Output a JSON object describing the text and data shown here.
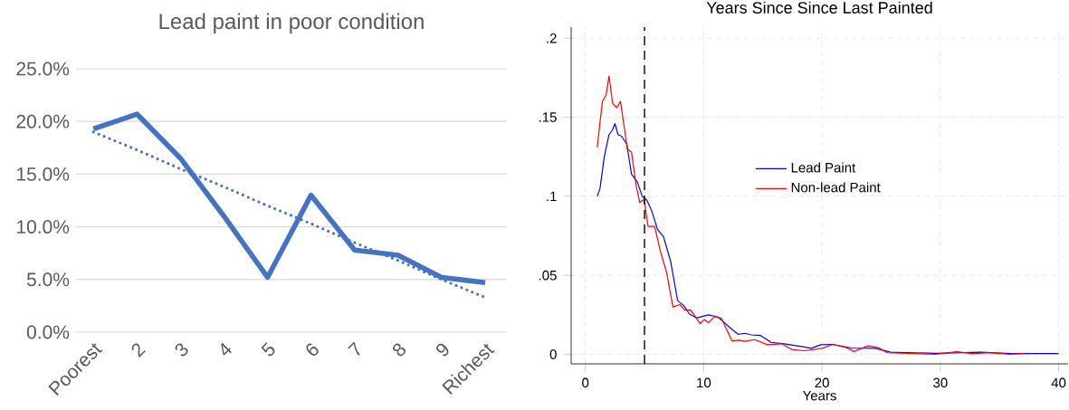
{
  "chart_data": [
    {
      "type": "line",
      "title": "Lead paint in poor condition",
      "categories": [
        "Poorest",
        "2",
        "3",
        "4",
        "5",
        "6",
        "7",
        "8",
        "9",
        "Richest"
      ],
      "series": [
        {
          "color": "#4472c4",
          "line_style": "solid",
          "values": [
            19.3,
            20.7,
            16.5,
            11.0,
            5.2,
            13.0,
            7.8,
            7.3,
            5.2,
            4.7
          ]
        },
        {
          "type": "line",
          "color": "#4472c4",
          "line_style": "dotted",
          "values": [
            19.0,
            17.3,
            15.5,
            13.8,
            12.0,
            10.3,
            8.5,
            6.8,
            5.0,
            3.3
          ]
        }
      ],
      "ylim": [
        0,
        25
      ],
      "yticks": [
        {
          "value": 0,
          "label": "0.0%"
        },
        {
          "value": 5,
          "label": "5.0%"
        },
        {
          "value": 10,
          "label": "10.0%"
        },
        {
          "value": 15,
          "label": "15.0%"
        },
        {
          "value": 20,
          "label": "20.0%"
        },
        {
          "value": 25,
          "label": "25.0%"
        }
      ],
      "grid": "y"
    },
    {
      "type": "line",
      "title": "Years Since Since Last Painted",
      "xlabel": "Years",
      "series": [
        {
          "name": "Lead Paint",
          "color": "#0000ff",
          "x": [
            1.0,
            1.24,
            1.6,
            2.0,
            2.3,
            2.5,
            2.76,
            3.06,
            3.5,
            3.9,
            4.4,
            4.8,
            5.2,
            5.6,
            6.1,
            6.6,
            7.2,
            7.8,
            8.3,
            8.8,
            9.4,
            10.4,
            11.2,
            12.2,
            12.9,
            13.5,
            14.0,
            14.8,
            15.7,
            16.8,
            18.4,
            19.1,
            19.9,
            20.9,
            22.5,
            24.5,
            25.8,
            29.6,
            33.4,
            36.0,
            40.0
          ],
          "values": [
            0.1,
            0.105,
            0.125,
            0.139,
            0.142,
            0.146,
            0.139,
            0.138,
            0.133,
            0.114,
            0.109,
            0.1,
            0.0975,
            0.091,
            0.079,
            0.0745,
            0.059,
            0.034,
            0.031,
            0.0255,
            0.023,
            0.025,
            0.0236,
            0.017,
            0.0127,
            0.0133,
            0.0123,
            0.0119,
            0.0076,
            0.0067,
            0.0048,
            0.0038,
            0.0061,
            0.0063,
            0.004,
            0.0038,
            0.0014,
            0.0006,
            0.0014,
            0.0005,
            0.0005
          ]
        },
        {
          "name": "Non-lead Paint",
          "color": "#ff0000",
          "x": [
            1.0,
            1.44,
            1.75,
            2.0,
            2.3,
            2.65,
            2.97,
            3.3,
            3.55,
            3.9,
            4.3,
            4.6,
            4.96,
            5.3,
            5.85,
            6.35,
            6.86,
            7.4,
            8.0,
            8.4,
            8.9,
            9.7,
            10.05,
            10.4,
            10.95,
            11.5,
            12.4,
            13.0,
            13.5,
            14.3,
            15.4,
            16.6,
            17.5,
            18.6,
            20.0,
            20.9,
            22.0,
            22.7,
            23.9,
            24.8,
            25.5,
            29.6,
            31.4,
            32.7,
            34.2,
            35.8,
            37.1
          ],
          "values": [
            0.131,
            0.16,
            0.164,
            0.176,
            0.159,
            0.156,
            0.16,
            0.143,
            0.13,
            0.128,
            0.1065,
            0.096,
            0.098,
            0.081,
            0.081,
            0.065,
            0.052,
            0.03,
            0.0315,
            0.028,
            0.028,
            0.0195,
            0.022,
            0.02,
            0.024,
            0.0227,
            0.0085,
            0.0089,
            0.0082,
            0.0093,
            0.0061,
            0.0067,
            0.0029,
            0.0023,
            0.0038,
            0.0063,
            0.0044,
            0.0018,
            0.0054,
            0.0042,
            0.001,
            0.0001,
            0.0016,
            0.0005,
            0.001,
            0.0001,
            0.0005
          ]
        }
      ],
      "xlim": [
        -1.2,
        40.8
      ],
      "ylim": [
        -0.006,
        0.207
      ],
      "xticks": [
        0,
        10,
        20,
        30,
        40
      ],
      "yticks": [
        {
          "value": 0,
          "label": "0"
        },
        {
          "value": 0.05,
          "label": ".05"
        },
        {
          "value": 0.1,
          "label": ".1"
        },
        {
          "value": 0.15,
          "label": ".15"
        },
        {
          "value": 0.2,
          "label": ".2"
        }
      ],
      "grid": true,
      "legend": "center",
      "ref_lines": [
        {
          "axis": "x",
          "value": 5,
          "color": "#000000",
          "line_style": "dashed"
        }
      ]
    }
  ]
}
